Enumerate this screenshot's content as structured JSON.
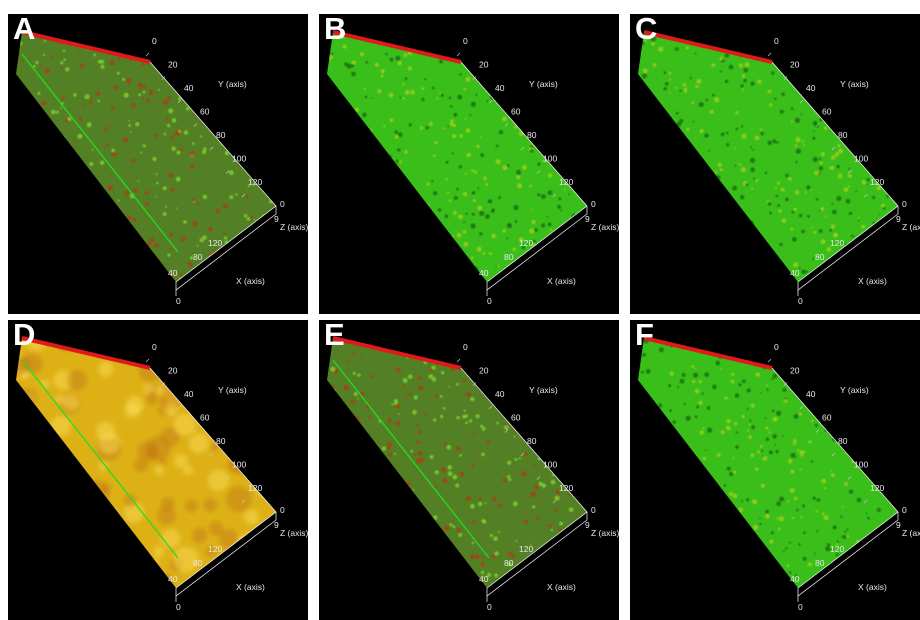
{
  "panels": [
    {
      "letter": "A",
      "palette": "mixed"
    },
    {
      "letter": "B",
      "palette": "green"
    },
    {
      "letter": "C",
      "palette": "green"
    },
    {
      "letter": "D",
      "palette": "yellow"
    },
    {
      "letter": "E",
      "palette": "mixed"
    },
    {
      "letter": "F",
      "palette": "green"
    }
  ],
  "axes": {
    "y_label": "Y (axis)",
    "x_label": "X (axis)",
    "z_label": "Z (axis)",
    "y_ticks": [
      "0",
      "20",
      "40",
      "60",
      "80",
      "100",
      "120"
    ],
    "x_ticks": [
      "120",
      "80",
      "40",
      "0"
    ],
    "z_ticks": [
      "0",
      "9"
    ]
  },
  "colors": {
    "background": "#000000",
    "frame": "#ffffff",
    "red_axis": "#e01a1a",
    "green_axis": "#22dd22",
    "green_fill": "#3fcf1c",
    "yellow_fill": "#f0c018",
    "mixed_fill": "#5a8a28"
  }
}
